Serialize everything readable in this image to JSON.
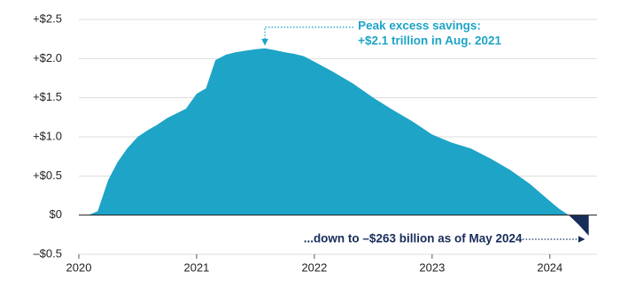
{
  "chart_data": {
    "type": "area",
    "x": [
      2020.08,
      2020.16,
      2020.25,
      2020.33,
      2020.41,
      2020.5,
      2020.58,
      2020.66,
      2020.75,
      2020.83,
      2020.91,
      2021.0,
      2021.08,
      2021.16,
      2021.25,
      2021.33,
      2021.41,
      2021.5,
      2021.58,
      2021.66,
      2021.75,
      2021.83,
      2021.91,
      2022.0,
      2022.16,
      2022.33,
      2022.5,
      2022.66,
      2022.83,
      2023.0,
      2023.16,
      2023.33,
      2023.5,
      2023.66,
      2023.83,
      2024.0,
      2024.08,
      2024.16,
      2024.25,
      2024.33
    ],
    "values": [
      0,
      0.05,
      0.45,
      0.68,
      0.85,
      1.0,
      1.08,
      1.15,
      1.24,
      1.3,
      1.36,
      1.55,
      1.62,
      1.98,
      2.05,
      2.08,
      2.1,
      2.12,
      2.13,
      2.11,
      2.08,
      2.06,
      2.03,
      1.96,
      1.83,
      1.68,
      1.5,
      1.35,
      1.2,
      1.03,
      0.93,
      0.85,
      0.72,
      0.58,
      0.4,
      0.18,
      0.08,
      0,
      -0.13,
      -0.263
    ],
    "color": "#1ea4c7",
    "negative_color": "#182c5a",
    "xlim": [
      2020,
      2024.4
    ],
    "xticks": [
      2020,
      2021,
      2022,
      2023,
      2024
    ],
    "ylim": [
      -0.5,
      2.5
    ],
    "yticks": [
      {
        "value": -0.5,
        "label": "–$0.5"
      },
      {
        "value": 0,
        "label": "$0"
      },
      {
        "value": 0.5,
        "label": "+$0.5"
      },
      {
        "value": 1.0,
        "label": "+$1.0"
      },
      {
        "value": 1.5,
        "label": "+$1.5"
      },
      {
        "value": 2.0,
        "label": "+$2.0"
      },
      {
        "value": 2.5,
        "label": "+$2.5"
      }
    ],
    "grid": true,
    "annotations": [
      {
        "lines": [
          "Peak excess savings:",
          "+$2.1 trillion in Aug. 2021"
        ],
        "x": 2021.58,
        "y": 2.13
      },
      {
        "lines": [
          "...down to –$263 billion as of May 2024"
        ],
        "x": 2024.33,
        "y": -0.263
      }
    ]
  }
}
